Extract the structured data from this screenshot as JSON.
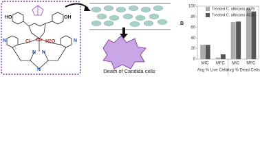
{
  "diagram": {
    "atoms": [
      "HO",
      "OH",
      "N",
      "Cl",
      "Co",
      "H2O",
      "N",
      "N",
      "N",
      "N"
    ],
    "caption": "Death of Candida cells"
  },
  "chart_data": {
    "type": "bar",
    "panel_label": "B",
    "categories": [
      "MIC",
      "MFC",
      "MIC",
      "MFC"
    ],
    "group_labels": [
      "Avg % Live Cells",
      "Avg % Dead Cells"
    ],
    "series": [
      {
        "name": "Treated C. albicans 4175",
        "color": "#ababab",
        "values": [
          27,
          3,
          70,
          96
        ]
      },
      {
        "name": "Treated C. albicans 4122",
        "color": "#555555",
        "values": [
          27,
          9,
          71,
          90
        ]
      }
    ],
    "ylim": [
      0,
      100
    ],
    "yticks": [
      0,
      20,
      40,
      60,
      80,
      100
    ]
  }
}
